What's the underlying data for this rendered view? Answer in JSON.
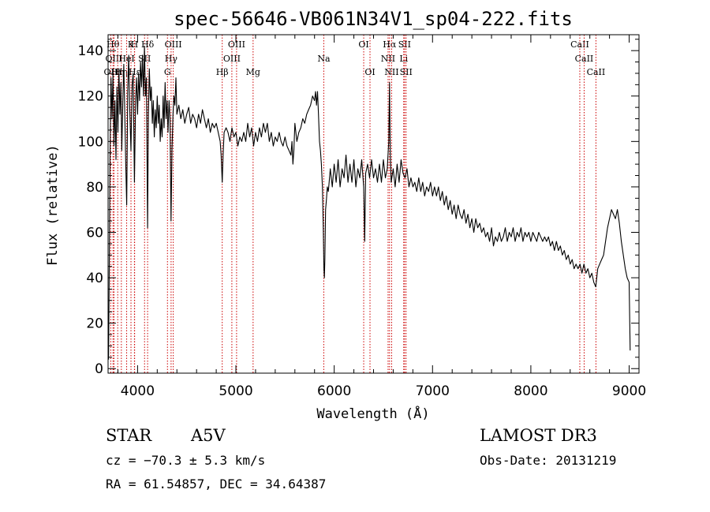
{
  "chart_data": {
    "type": "line",
    "title": "spec-56646-VB061N34V1_sp04-222.fits",
    "xlabel": "Wavelength (Å)",
    "ylabel": "Flux (relative)",
    "xlim": [
      3700,
      9100
    ],
    "ylim": [
      -2,
      147
    ],
    "x_ticks": [
      4000,
      5000,
      6000,
      7000,
      8000,
      9000
    ],
    "y_ticks": [
      0,
      20,
      40,
      60,
      80,
      100,
      120,
      140
    ],
    "grid": false,
    "line_color": "#000000",
    "marker_color": "#cc0000",
    "spectrum": [
      [
        3705,
        4
      ],
      [
        3712,
        45
      ],
      [
        3720,
        95
      ],
      [
        3730,
        128
      ],
      [
        3740,
        110
      ],
      [
        3750,
        130
      ],
      [
        3760,
        98
      ],
      [
        3770,
        118
      ],
      [
        3780,
        92
      ],
      [
        3790,
        124
      ],
      [
        3800,
        104
      ],
      [
        3810,
        132
      ],
      [
        3820,
        112
      ],
      [
        3830,
        126
      ],
      [
        3840,
        96
      ],
      [
        3850,
        118
      ],
      [
        3860,
        134
      ],
      [
        3870,
        112
      ],
      [
        3880,
        90
      ],
      [
        3889,
        72
      ],
      [
        3900,
        122
      ],
      [
        3910,
        138
      ],
      [
        3920,
        115
      ],
      [
        3933,
        96
      ],
      [
        3945,
        125
      ],
      [
        3955,
        130
      ],
      [
        3968,
        82
      ],
      [
        3980,
        118
      ],
      [
        3990,
        128
      ],
      [
        4000,
        112
      ],
      [
        4010,
        130
      ],
      [
        4020,
        118
      ],
      [
        4030,
        135
      ],
      [
        4040,
        124
      ],
      [
        4050,
        138
      ],
      [
        4060,
        120
      ],
      [
        4070,
        142
      ],
      [
        4080,
        120
      ],
      [
        4090,
        128
      ],
      [
        4102,
        62
      ],
      [
        4110,
        112
      ],
      [
        4120,
        132
      ],
      [
        4130,
        118
      ],
      [
        4140,
        124
      ],
      [
        4150,
        108
      ],
      [
        4160,
        118
      ],
      [
        4170,
        102
      ],
      [
        4180,
        114
      ],
      [
        4190,
        106
      ],
      [
        4200,
        120
      ],
      [
        4210,
        108
      ],
      [
        4220,
        116
      ],
      [
        4230,
        100
      ],
      [
        4240,
        110
      ],
      [
        4250,
        102
      ],
      [
        4260,
        120
      ],
      [
        4270,
        106
      ],
      [
        4280,
        126
      ],
      [
        4290,
        110
      ],
      [
        4300,
        118
      ],
      [
        4310,
        104
      ],
      [
        4320,
        118
      ],
      [
        4330,
        110
      ],
      [
        4340,
        65
      ],
      [
        4350,
        96
      ],
      [
        4360,
        112
      ],
      [
        4370,
        120
      ],
      [
        4380,
        116
      ],
      [
        4390,
        128
      ],
      [
        4400,
        112
      ],
      [
        4420,
        116
      ],
      [
        4440,
        110
      ],
      [
        4460,
        114
      ],
      [
        4480,
        108
      ],
      [
        4500,
        112
      ],
      [
        4520,
        115
      ],
      [
        4540,
        108
      ],
      [
        4560,
        112
      ],
      [
        4580,
        110
      ],
      [
        4600,
        106
      ],
      [
        4620,
        112
      ],
      [
        4640,
        108
      ],
      [
        4660,
        114
      ],
      [
        4680,
        110
      ],
      [
        4700,
        106
      ],
      [
        4720,
        110
      ],
      [
        4740,
        104
      ],
      [
        4760,
        108
      ],
      [
        4780,
        106
      ],
      [
        4800,
        108
      ],
      [
        4820,
        104
      ],
      [
        4840,
        100
      ],
      [
        4850,
        94
      ],
      [
        4861,
        82
      ],
      [
        4870,
        94
      ],
      [
        4880,
        104
      ],
      [
        4900,
        106
      ],
      [
        4920,
        104
      ],
      [
        4940,
        100
      ],
      [
        4960,
        106
      ],
      [
        4980,
        102
      ],
      [
        5000,
        104
      ],
      [
        5020,
        98
      ],
      [
        5040,
        102
      ],
      [
        5060,
        100
      ],
      [
        5080,
        104
      ],
      [
        5100,
        100
      ],
      [
        5120,
        108
      ],
      [
        5140,
        102
      ],
      [
        5160,
        106
      ],
      [
        5180,
        98
      ],
      [
        5200,
        104
      ],
      [
        5220,
        100
      ],
      [
        5240,
        106
      ],
      [
        5260,
        102
      ],
      [
        5280,
        108
      ],
      [
        5300,
        104
      ],
      [
        5320,
        108
      ],
      [
        5340,
        100
      ],
      [
        5360,
        104
      ],
      [
        5380,
        98
      ],
      [
        5400,
        102
      ],
      [
        5420,
        100
      ],
      [
        5440,
        104
      ],
      [
        5460,
        100
      ],
      [
        5480,
        98
      ],
      [
        5500,
        102
      ],
      [
        5520,
        98
      ],
      [
        5540,
        96
      ],
      [
        5560,
        94
      ],
      [
        5570,
        100
      ],
      [
        5580,
        90
      ],
      [
        5590,
        96
      ],
      [
        5600,
        108
      ],
      [
        5620,
        100
      ],
      [
        5640,
        104
      ],
      [
        5660,
        106
      ],
      [
        5680,
        110
      ],
      [
        5700,
        108
      ],
      [
        5720,
        112
      ],
      [
        5740,
        114
      ],
      [
        5760,
        116
      ],
      [
        5780,
        120
      ],
      [
        5800,
        118
      ],
      [
        5810,
        122
      ],
      [
        5820,
        116
      ],
      [
        5830,
        122
      ],
      [
        5840,
        112
      ],
      [
        5850,
        100
      ],
      [
        5860,
        96
      ],
      [
        5870,
        90
      ],
      [
        5880,
        80
      ],
      [
        5890,
        60
      ],
      [
        5895,
        44
      ],
      [
        5900,
        40
      ],
      [
        5905,
        48
      ],
      [
        5912,
        70
      ],
      [
        5920,
        74
      ],
      [
        5930,
        80
      ],
      [
        5940,
        78
      ],
      [
        5960,
        88
      ],
      [
        5980,
        80
      ],
      [
        6000,
        90
      ],
      [
        6020,
        82
      ],
      [
        6040,
        92
      ],
      [
        6060,
        80
      ],
      [
        6080,
        88
      ],
      [
        6100,
        84
      ],
      [
        6120,
        94
      ],
      [
        6140,
        82
      ],
      [
        6160,
        90
      ],
      [
        6180,
        82
      ],
      [
        6200,
        92
      ],
      [
        6220,
        80
      ],
      [
        6240,
        88
      ],
      [
        6260,
        84
      ],
      [
        6280,
        92
      ],
      [
        6300,
        80
      ],
      [
        6310,
        56
      ],
      [
        6320,
        86
      ],
      [
        6340,
        90
      ],
      [
        6360,
        84
      ],
      [
        6380,
        92
      ],
      [
        6400,
        84
      ],
      [
        6420,
        88
      ],
      [
        6440,
        82
      ],
      [
        6460,
        90
      ],
      [
        6480,
        82
      ],
      [
        6500,
        92
      ],
      [
        6520,
        84
      ],
      [
        6540,
        88
      ],
      [
        6555,
        100
      ],
      [
        6563,
        126
      ],
      [
        6570,
        94
      ],
      [
        6580,
        82
      ],
      [
        6600,
        88
      ],
      [
        6620,
        80
      ],
      [
        6640,
        90
      ],
      [
        6660,
        82
      ],
      [
        6680,
        92
      ],
      [
        6700,
        86
      ],
      [
        6720,
        84
      ],
      [
        6740,
        88
      ],
      [
        6760,
        80
      ],
      [
        6780,
        84
      ],
      [
        6800,
        80
      ],
      [
        6820,
        82
      ],
      [
        6840,
        78
      ],
      [
        6860,
        84
      ],
      [
        6880,
        78
      ],
      [
        6900,
        82
      ],
      [
        6920,
        76
      ],
      [
        6940,
        80
      ],
      [
        6960,
        78
      ],
      [
        6980,
        82
      ],
      [
        7000,
        76
      ],
      [
        7020,
        80
      ],
      [
        7040,
        76
      ],
      [
        7060,
        80
      ],
      [
        7080,
        74
      ],
      [
        7100,
        78
      ],
      [
        7120,
        72
      ],
      [
        7140,
        76
      ],
      [
        7160,
        70
      ],
      [
        7180,
        74
      ],
      [
        7200,
        68
      ],
      [
        7220,
        72
      ],
      [
        7240,
        66
      ],
      [
        7260,
        72
      ],
      [
        7280,
        68
      ],
      [
        7300,
        66
      ],
      [
        7320,
        70
      ],
      [
        7340,
        64
      ],
      [
        7360,
        68
      ],
      [
        7380,
        62
      ],
      [
        7400,
        66
      ],
      [
        7420,
        60
      ],
      [
        7440,
        66
      ],
      [
        7460,
        62
      ],
      [
        7480,
        64
      ],
      [
        7500,
        60
      ],
      [
        7520,
        62
      ],
      [
        7540,
        58
      ],
      [
        7560,
        60
      ],
      [
        7580,
        56
      ],
      [
        7600,
        62
      ],
      [
        7620,
        54
      ],
      [
        7640,
        58
      ],
      [
        7660,
        56
      ],
      [
        7680,
        60
      ],
      [
        7700,
        56
      ],
      [
        7720,
        58
      ],
      [
        7740,
        62
      ],
      [
        7760,
        56
      ],
      [
        7780,
        60
      ],
      [
        7800,
        58
      ],
      [
        7820,
        62
      ],
      [
        7840,
        56
      ],
      [
        7860,
        60
      ],
      [
        7880,
        58
      ],
      [
        7900,
        62
      ],
      [
        7920,
        56
      ],
      [
        7940,
        60
      ],
      [
        7960,
        58
      ],
      [
        7980,
        60
      ],
      [
        8000,
        56
      ],
      [
        8020,
        60
      ],
      [
        8040,
        58
      ],
      [
        8060,
        56
      ],
      [
        8080,
        60
      ],
      [
        8100,
        58
      ],
      [
        8120,
        56
      ],
      [
        8140,
        58
      ],
      [
        8160,
        56
      ],
      [
        8180,
        58
      ],
      [
        8200,
        54
      ],
      [
        8220,
        56
      ],
      [
        8240,
        52
      ],
      [
        8260,
        56
      ],
      [
        8280,
        52
      ],
      [
        8300,
        54
      ],
      [
        8320,
        50
      ],
      [
        8340,
        52
      ],
      [
        8360,
        48
      ],
      [
        8380,
        50
      ],
      [
        8400,
        46
      ],
      [
        8420,
        48
      ],
      [
        8440,
        44
      ],
      [
        8460,
        46
      ],
      [
        8480,
        44
      ],
      [
        8500,
        46
      ],
      [
        8520,
        42
      ],
      [
        8540,
        46
      ],
      [
        8560,
        42
      ],
      [
        8580,
        44
      ],
      [
        8600,
        40
      ],
      [
        8620,
        42
      ],
      [
        8640,
        38
      ],
      [
        8660,
        36
      ],
      [
        8680,
        44
      ],
      [
        8700,
        46
      ],
      [
        8720,
        48
      ],
      [
        8740,
        50
      ],
      [
        8760,
        56
      ],
      [
        8780,
        62
      ],
      [
        8800,
        66
      ],
      [
        8820,
        70
      ],
      [
        8840,
        68
      ],
      [
        8860,
        66
      ],
      [
        8880,
        70
      ],
      [
        8900,
        64
      ],
      [
        8920,
        56
      ],
      [
        8940,
        50
      ],
      [
        8960,
        44
      ],
      [
        8980,
        40
      ],
      [
        9000,
        38
      ],
      [
        9010,
        8
      ]
    ],
    "line_markers": [
      {
        "x": 3750,
        "label": "Hθ",
        "row": 0
      },
      {
        "x": 3727,
        "label": "OII",
        "row": 2
      },
      {
        "x": 3760,
        "label": "OIII",
        "row": 1
      },
      {
        "x": 3798,
        "label": "Hη",
        "row": 2
      },
      {
        "x": 3835,
        "label": "Hη",
        "row": 3
      },
      {
        "x": 3889,
        "label": "HeI",
        "row": 1
      },
      {
        "x": 3933,
        "label": "K",
        "row": 0
      },
      {
        "x": 3968,
        "label": "H",
        "row": 0
      },
      {
        "x": 3970,
        "label": "Hε",
        "row": 2
      },
      {
        "x": 4071,
        "label": "SII",
        "row": 1
      },
      {
        "x": 4102,
        "label": "Hδ",
        "row": 0
      },
      {
        "x": 4304,
        "label": "G",
        "row": 2
      },
      {
        "x": 4341,
        "label": "Hγ",
        "row": 1
      },
      {
        "x": 4363,
        "label": "OIII",
        "row": 0
      },
      {
        "x": 4861,
        "label": "Hβ",
        "row": 2
      },
      {
        "x": 4959,
        "label": "OIII",
        "row": 1
      },
      {
        "x": 5007,
        "label": "OIII",
        "row": 0
      },
      {
        "x": 5175,
        "label": "Mg",
        "row": 2
      },
      {
        "x": 5894,
        "label": "Na",
        "row": 1
      },
      {
        "x": 6300,
        "label": "OI",
        "row": 0
      },
      {
        "x": 6364,
        "label": "OI",
        "row": 2
      },
      {
        "x": 6548,
        "label": "NII",
        "row": 1
      },
      {
        "x": 6563,
        "label": "Hα",
        "row": 0
      },
      {
        "x": 6584,
        "label": "NII",
        "row": 2
      },
      {
        "x": 6707,
        "label": "Li",
        "row": 1
      },
      {
        "x": 6716,
        "label": "SII",
        "row": 0
      },
      {
        "x": 6731,
        "label": "SII",
        "row": 2
      },
      {
        "x": 8498,
        "label": "CaII",
        "row": 0
      },
      {
        "x": 8542,
        "label": "CaII",
        "row": 1
      },
      {
        "x": 8662,
        "label": "CaII",
        "row": 2
      }
    ]
  },
  "info": {
    "object_class": "STAR",
    "subclass": "A5V",
    "survey": "LAMOST DR3",
    "redshift": "cz = −70.3 ± 5.3 km/s",
    "obs_date": "Obs-Date: 20131219",
    "coords": "RA =  61.54857, DEC =  34.64387"
  }
}
